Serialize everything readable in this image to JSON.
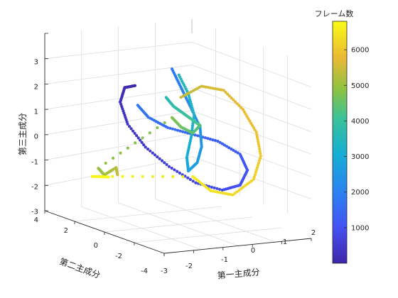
{
  "chart_data": {
    "type": "scatter",
    "dimensions": 3,
    "title": "",
    "xlabel": "第一主成分",
    "ylabel": "第二主成分",
    "zlabel": "第三主成分",
    "xlim": [
      -3,
      2
    ],
    "ylim": [
      -4,
      4
    ],
    "zlim": [
      -3,
      3
    ],
    "xticks": [
      "-3",
      "-2",
      "-1",
      "0",
      "1",
      "2"
    ],
    "yticks": [
      "-4",
      "-2",
      "0",
      "2",
      "4"
    ],
    "zticks": [
      "-3",
      "-2",
      "-1",
      "0",
      "1",
      "2",
      "3"
    ],
    "grid": true,
    "colormap": "parula",
    "colorbar": {
      "title": "フレーム数",
      "range": [
        1,
        6800
      ],
      "ticks": [
        "1000",
        "2000",
        "3000",
        "4000",
        "5000",
        "6000"
      ]
    },
    "series": [
      {
        "frames": [
          1,
          1800
        ],
        "x": [
          -1.2,
          -1.4,
          -1.5,
          -1.4,
          -1.1,
          -0.6,
          0.0,
          0.6,
          1.0,
          1.2,
          1.1,
          0.6,
          0.0,
          -0.6,
          -1.0,
          -1.2
        ],
        "y": [
          1.5,
          1.8,
          1.9,
          1.6,
          1.0,
          0.4,
          -0.2,
          -0.8,
          -1.2,
          -1.3,
          -1.0,
          -0.5,
          0.0,
          0.5,
          1.0,
          1.4
        ],
        "z": [
          1.5,
          1.4,
          0.9,
          0.2,
          -0.5,
          -1.1,
          -1.6,
          -1.8,
          -1.6,
          -1.1,
          -0.6,
          -0.2,
          0.0,
          0.2,
          0.5,
          0.9
        ]
      },
      {
        "frames": [
          1800,
          3600
        ],
        "x": [
          -0.3,
          -0.1,
          0.1,
          0.3,
          0.2,
          0.0,
          -0.2,
          -0.1,
          0.2,
          0.4,
          0.3,
          0.0
        ],
        "y": [
          0.8,
          0.6,
          0.4,
          0.1,
          -0.2,
          -0.3,
          -0.1,
          0.2,
          0.5,
          0.7,
          0.9,
          1.0
        ],
        "z": [
          2.1,
          1.5,
          0.9,
          0.2,
          -0.4,
          -0.9,
          -1.2,
          -0.8,
          -0.2,
          0.5,
          1.2,
          1.9
        ]
      },
      {
        "frames": [
          3600,
          5400
        ],
        "x": [
          -0.6,
          -0.4,
          -0.2,
          0.0,
          0.2,
          0.1,
          -0.2,
          -0.4,
          -2.6,
          -2.5,
          -2.3,
          -2.4
        ],
        "y": [
          0.6,
          0.5,
          0.3,
          0.1,
          -0.1,
          0.2,
          0.4,
          0.6,
          1.2,
          1.0,
          0.6,
          0.3
        ],
        "z": [
          1.2,
          0.9,
          0.7,
          0.5,
          0.3,
          0.0,
          0.2,
          0.5,
          -1.1,
          -1.3,
          -1.0,
          -1.2
        ]
      },
      {
        "frames": [
          5400,
          6800
        ],
        "x": [
          -0.2,
          0.3,
          0.8,
          1.2,
          1.4,
          1.3,
          0.9,
          0.3,
          -0.2,
          -0.5,
          -2.7,
          -2.5
        ],
        "y": [
          0.4,
          0.0,
          -0.5,
          -1.0,
          -1.5,
          -2.0,
          -2.3,
          -2.1,
          -1.6,
          -1.0,
          1.4,
          0.6
        ],
        "z": [
          1.2,
          1.6,
          1.5,
          0.9,
          0.2,
          -0.5,
          -1.2,
          -1.7,
          -1.6,
          -1.2,
          -1.4,
          -1.3
        ]
      }
    ]
  }
}
